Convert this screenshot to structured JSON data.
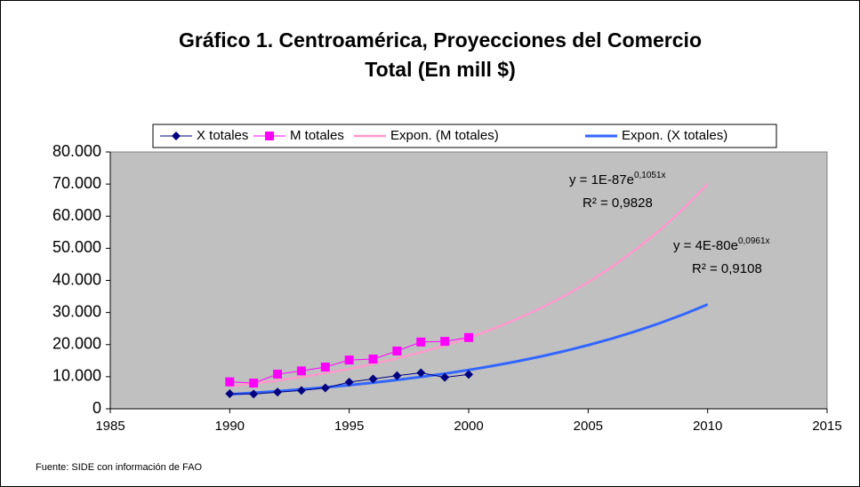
{
  "chart_data": {
    "type": "line",
    "title": "Gráfico 1. Centroamérica, Proyecciones del Comercio",
    "subtitle": "Total  (En mill $)",
    "source": "Fuente: SIDE con información de FAO",
    "x": [
      1990,
      1991,
      1992,
      1993,
      1994,
      1995,
      1996,
      1997,
      1998,
      1999,
      2000,
      2001,
      2002,
      2003,
      2004,
      2005,
      2006,
      2007,
      2008,
      2009,
      2010
    ],
    "series": [
      {
        "name": "X totales",
        "color": "#000080",
        "marker": "diamond",
        "line_width": 1,
        "values": [
          4700,
          4600,
          5200,
          5700,
          6500,
          8300,
          9300,
          10300,
          11200,
          9800,
          10700,
          null,
          null,
          null,
          null,
          null,
          null,
          null,
          null,
          null,
          null
        ]
      },
      {
        "name": "M totales",
        "color": "#ff00ff",
        "marker": "square",
        "line_width": 1,
        "values": [
          8400,
          8000,
          10800,
          11800,
          13000,
          15200,
          15500,
          18000,
          20800,
          21000,
          22200,
          null,
          null,
          null,
          null,
          null,
          null,
          null,
          null,
          null,
          null
        ]
      },
      {
        "name": "Expon. (M totales)",
        "color": "#ff99cc",
        "marker": "none",
        "line_width": 2.5,
        "values": [
          7000,
          7900,
          8800,
          9900,
          11100,
          12400,
          14000,
          15700,
          17600,
          19700,
          22100,
          24800,
          27900,
          31300,
          35100,
          39400,
          44200,
          49600,
          55600,
          62400,
          70000
        ]
      },
      {
        "name": "Expon. (X totales)",
        "color": "#3366ff",
        "marker": "none",
        "line_width": 3,
        "values": [
          4500,
          4970,
          5480,
          6050,
          6680,
          7380,
          8140,
          8990,
          9920,
          10950,
          12090,
          13350,
          14740,
          16270,
          17960,
          19830,
          21890,
          24170,
          26680,
          29450,
          32500
        ]
      }
    ],
    "annotations": [
      {
        "base": "y = 1E-87e",
        "exponent": "0,1051x",
        "r2": "R² = 0,9828"
      },
      {
        "base": "y = 4E-80e",
        "exponent": "0,0961x",
        "r2": "R² = 0,9108"
      }
    ],
    "xlim": [
      1985,
      2015
    ],
    "xticks": [
      1985,
      1990,
      1995,
      2000,
      2005,
      2010,
      2015
    ],
    "ylim": [
      0,
      80000
    ],
    "yticks": [
      0,
      {
        "value": 10000,
        "label": "10.000"
      },
      {
        "value": 20000,
        "label": "20.000"
      },
      {
        "value": 30000,
        "label": "30.000"
      },
      {
        "value": 40000,
        "label": "40.000"
      },
      {
        "value": 50000,
        "label": "50.000"
      },
      {
        "value": 60000,
        "label": "60.000"
      },
      {
        "value": 70000,
        "label": "70.000"
      },
      {
        "value": 80000,
        "label": "80.000"
      }
    ],
    "plot_background": "#c0c0c0",
    "legend": "top"
  }
}
